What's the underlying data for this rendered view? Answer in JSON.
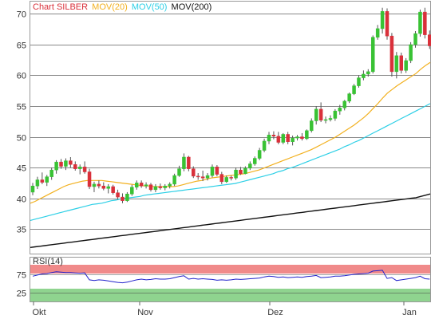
{
  "legend": {
    "chart_name": "Chart SILBER",
    "mov20_label": "MOV(20)",
    "mov50_label": "MOV(50)",
    "mov200_label": "MOV(200)"
  },
  "rsi_label": "RSI(14)",
  "colors": {
    "up": "#39c234",
    "down": "#d9303a",
    "mov20": "#f2b01e",
    "mov50": "#2ccfe6",
    "mov200": "#111111",
    "rsi_line": "#2222cc",
    "rsi_overbought_band": "#f08a8a",
    "rsi_oversold_band": "#8fd48f",
    "grid": "#888888"
  },
  "chart_data": [
    {
      "type": "candlestick",
      "title": "Chart SILBER",
      "x_axis_labels": [
        "Okt",
        "Nov",
        "Dez",
        "Jan"
      ],
      "y_ticks": [
        35,
        40,
        45,
        50,
        55,
        60,
        65,
        70
      ],
      "ylim": [
        31,
        72
      ],
      "grid": true,
      "legend_position": "top-left",
      "candles": [
        [
          41.0,
          42.5,
          40.5,
          42.0
        ],
        [
          42.0,
          43.5,
          41.5,
          43.0
        ],
        [
          43.0,
          44.2,
          42.3,
          42.6
        ],
        [
          42.6,
          43.8,
          42.0,
          43.5
        ],
        [
          43.5,
          45.0,
          43.0,
          44.6
        ],
        [
          44.6,
          46.2,
          44.0,
          45.9
        ],
        [
          45.9,
          46.4,
          44.8,
          45.2
        ],
        [
          45.2,
          46.5,
          44.6,
          46.1
        ],
        [
          46.1,
          46.7,
          45.0,
          45.5
        ],
        [
          45.5,
          46.0,
          44.5,
          44.8
        ],
        [
          44.8,
          45.5,
          43.9,
          45.1
        ],
        [
          45.1,
          46.0,
          44.0,
          44.3
        ],
        [
          44.3,
          44.8,
          41.5,
          41.9
        ],
        [
          41.9,
          42.7,
          41.0,
          42.3
        ],
        [
          42.3,
          42.9,
          41.6,
          42.0
        ],
        [
          42.0,
          42.6,
          41.3,
          41.6
        ],
        [
          41.6,
          42.3,
          40.8,
          41.9
        ],
        [
          41.9,
          42.2,
          40.6,
          40.9
        ],
        [
          40.9,
          41.4,
          39.8,
          40.2
        ],
        [
          40.2,
          40.8,
          39.2,
          39.6
        ],
        [
          39.6,
          41.0,
          39.4,
          40.7
        ],
        [
          40.7,
          42.2,
          40.4,
          41.8
        ],
        [
          41.8,
          42.9,
          41.4,
          42.5
        ],
        [
          42.5,
          42.9,
          41.7,
          42.0
        ],
        [
          42.0,
          42.6,
          41.6,
          42.2
        ],
        [
          42.2,
          42.5,
          41.1,
          41.4
        ],
        [
          41.4,
          42.3,
          41.0,
          41.9
        ],
        [
          41.9,
          42.4,
          41.4,
          41.7
        ],
        [
          41.7,
          42.3,
          41.3,
          42.0
        ],
        [
          42.0,
          42.6,
          41.6,
          42.3
        ],
        [
          42.3,
          44.0,
          42.0,
          43.7
        ],
        [
          43.7,
          45.3,
          43.5,
          44.8
        ],
        [
          44.8,
          47.3,
          44.4,
          46.7
        ],
        [
          46.7,
          46.9,
          44.4,
          44.8
        ],
        [
          44.8,
          45.2,
          43.3,
          43.6
        ],
        [
          43.6,
          44.1,
          43.0,
          43.5
        ],
        [
          43.5,
          44.5,
          42.8,
          43.3
        ],
        [
          43.3,
          44.1,
          42.9,
          43.7
        ],
        [
          43.7,
          45.5,
          43.4,
          45.1
        ],
        [
          45.1,
          45.4,
          43.6,
          43.9
        ],
        [
          43.9,
          44.3,
          42.3,
          42.7
        ],
        [
          42.7,
          43.7,
          42.5,
          43.4
        ],
        [
          43.4,
          43.7,
          42.9,
          43.3
        ],
        [
          43.3,
          45.0,
          43.0,
          44.6
        ],
        [
          44.6,
          45.1,
          43.8,
          44.0
        ],
        [
          44.0,
          45.2,
          43.9,
          44.9
        ],
        [
          44.9,
          46.0,
          44.6,
          45.6
        ],
        [
          45.6,
          46.8,
          45.3,
          46.5
        ],
        [
          46.5,
          48.2,
          46.2,
          47.8
        ],
        [
          47.8,
          49.7,
          47.5,
          49.3
        ],
        [
          49.3,
          50.8,
          48.8,
          50.3
        ],
        [
          50.3,
          50.9,
          49.6,
          50.1
        ],
        [
          50.1,
          50.8,
          48.8,
          49.1
        ],
        [
          49.1,
          50.6,
          48.8,
          50.4
        ],
        [
          50.4,
          50.8,
          48.8,
          49.2
        ],
        [
          49.2,
          50.2,
          48.6,
          49.8
        ],
        [
          49.8,
          50.3,
          49.4,
          50.0
        ],
        [
          50.0,
          50.6,
          49.4,
          49.7
        ],
        [
          49.7,
          51.2,
          49.5,
          51.0
        ],
        [
          51.0,
          53.0,
          50.7,
          52.6
        ],
        [
          52.6,
          55.0,
          52.0,
          54.5
        ],
        [
          54.5,
          55.6,
          52.4,
          52.7
        ],
        [
          52.7,
          53.3,
          52.2,
          52.8
        ],
        [
          52.8,
          53.5,
          52.5,
          53.0
        ],
        [
          53.0,
          54.5,
          52.6,
          54.2
        ],
        [
          54.2,
          55.2,
          53.6,
          54.7
        ],
        [
          54.7,
          56.0,
          54.3,
          55.8
        ],
        [
          55.8,
          57.2,
          55.5,
          57.0
        ],
        [
          57.0,
          58.6,
          56.8,
          58.3
        ],
        [
          58.3,
          60.0,
          58.0,
          59.6
        ],
        [
          59.6,
          60.8,
          59.2,
          60.2
        ],
        [
          60.2,
          61.0,
          59.8,
          60.6
        ],
        [
          60.6,
          66.5,
          60.3,
          66.2
        ],
        [
          66.2,
          68.2,
          65.8,
          67.6
        ],
        [
          67.6,
          71.0,
          66.8,
          70.4
        ],
        [
          70.4,
          70.9,
          65.8,
          66.4
        ],
        [
          66.4,
          66.9,
          59.8,
          60.6
        ],
        [
          60.6,
          63.8,
          59.5,
          63.2
        ],
        [
          63.2,
          63.7,
          60.3,
          60.8
        ],
        [
          60.8,
          62.8,
          60.4,
          62.4
        ],
        [
          62.4,
          65.4,
          62.0,
          65.0
        ],
        [
          65.0,
          67.2,
          64.5,
          66.8
        ],
        [
          66.8,
          70.7,
          66.3,
          70.3
        ],
        [
          70.3,
          71.0,
          66.0,
          66.6
        ],
        [
          66.6,
          67.3,
          64.3,
          64.8
        ]
      ],
      "series": [
        {
          "name": "MOV(20)",
          "values": [
            39.2,
            39.5,
            39.9,
            40.3,
            40.7,
            41.1,
            41.5,
            41.9,
            42.2,
            42.4,
            42.6,
            42.8,
            42.9,
            42.9,
            42.9,
            42.9,
            42.8,
            42.7,
            42.6,
            42.5,
            42.4,
            42.3,
            42.2,
            42.1,
            42.0,
            42.0,
            41.9,
            41.9,
            41.9,
            41.9,
            41.9,
            42.0,
            42.2,
            42.4,
            42.6,
            42.8,
            42.9,
            43.1,
            43.3,
            43.4,
            43.5,
            43.6,
            43.7,
            43.8,
            43.9,
            44.0,
            44.2,
            44.4,
            44.6,
            44.9,
            45.2,
            45.5,
            45.8,
            46.1,
            46.4,
            46.7,
            47.0,
            47.3,
            47.6,
            47.9,
            48.3,
            48.7,
            49.1,
            49.5,
            49.9,
            50.4,
            50.9,
            51.4,
            51.9,
            52.5,
            53.1,
            53.8,
            54.6,
            55.4,
            56.3,
            57.1,
            57.7,
            58.3,
            58.8,
            59.3,
            59.8,
            60.3,
            61.0,
            61.6,
            62.1
          ]
        },
        {
          "name": "MOV(50)",
          "values": [
            36.4,
            36.6,
            36.8,
            37.0,
            37.2,
            37.4,
            37.6,
            37.8,
            38.0,
            38.2,
            38.4,
            38.6,
            38.8,
            39.0,
            39.1,
            39.2,
            39.4,
            39.6,
            39.7,
            39.9,
            40.0,
            40.1,
            40.2,
            40.3,
            40.5,
            40.6,
            40.7,
            40.8,
            40.9,
            41.0,
            41.1,
            41.2,
            41.3,
            41.4,
            41.5,
            41.6,
            41.7,
            41.8,
            41.9,
            42.0,
            42.1,
            42.2,
            42.3,
            42.4,
            42.6,
            42.8,
            43.0,
            43.2,
            43.4,
            43.6,
            43.8,
            44.0,
            44.3,
            44.5,
            44.8,
            45.0,
            45.3,
            45.6,
            45.9,
            46.2,
            46.5,
            46.8,
            47.1,
            47.4,
            47.7,
            48.0,
            48.4,
            48.7,
            49.1,
            49.4,
            49.8,
            50.2,
            50.6,
            51.0,
            51.4,
            51.8,
            52.2,
            52.6,
            53.0,
            53.4,
            53.8,
            54.2,
            54.6,
            55.0,
            55.4
          ]
        },
        {
          "name": "MOV(200)",
          "values": [
            32.0,
            32.1,
            32.2,
            32.3,
            32.4,
            32.5,
            32.6,
            32.7,
            32.8,
            32.9,
            33.0,
            33.1,
            33.2,
            33.3,
            33.4,
            33.5,
            33.6,
            33.7,
            33.8,
            33.9,
            34.0,
            34.1,
            34.2,
            34.3,
            34.4,
            34.5,
            34.6,
            34.7,
            34.8,
            34.9,
            35.0,
            35.1,
            35.2,
            35.3,
            35.4,
            35.5,
            35.6,
            35.7,
            35.8,
            35.9,
            36.0,
            36.1,
            36.2,
            36.3,
            36.4,
            36.5,
            36.6,
            36.7,
            36.8,
            36.9,
            37.0,
            37.1,
            37.2,
            37.3,
            37.4,
            37.5,
            37.6,
            37.7,
            37.8,
            37.9,
            38.0,
            38.1,
            38.2,
            38.3,
            38.4,
            38.5,
            38.6,
            38.7,
            38.8,
            38.9,
            39.0,
            39.1,
            39.2,
            39.3,
            39.4,
            39.5,
            39.6,
            39.7,
            39.8,
            39.9,
            40.0,
            40.1,
            40.3,
            40.5,
            40.7
          ]
        }
      ]
    },
    {
      "type": "line",
      "title": "RSI(14)",
      "y_ticks": [
        25,
        75
      ],
      "ylim": [
        0,
        100
      ],
      "bands": [
        {
          "from": 70,
          "to": 90,
          "color": "red"
        },
        {
          "from": 0,
          "to": 30,
          "color": "green"
        }
      ],
      "series": [
        {
          "name": "RSI(14)",
          "values": [
            70,
            73,
            76,
            77,
            80,
            82,
            81,
            80,
            80,
            79,
            78,
            79,
            60,
            58,
            60,
            59,
            57,
            55,
            53,
            52,
            54,
            57,
            60,
            62,
            60,
            61,
            63,
            62,
            62,
            63,
            66,
            69,
            71,
            62,
            64,
            62,
            63,
            62,
            61,
            59,
            60,
            59,
            60,
            62,
            61,
            62,
            63,
            64,
            65,
            68,
            70,
            69,
            67,
            68,
            66,
            67,
            68,
            67,
            69,
            70,
            72,
            66,
            67,
            68,
            70,
            70,
            71,
            73,
            75,
            76,
            77,
            78,
            84,
            85,
            86,
            64,
            66,
            58,
            60,
            62,
            64,
            66,
            70,
            63,
            62
          ]
        }
      ]
    }
  ]
}
